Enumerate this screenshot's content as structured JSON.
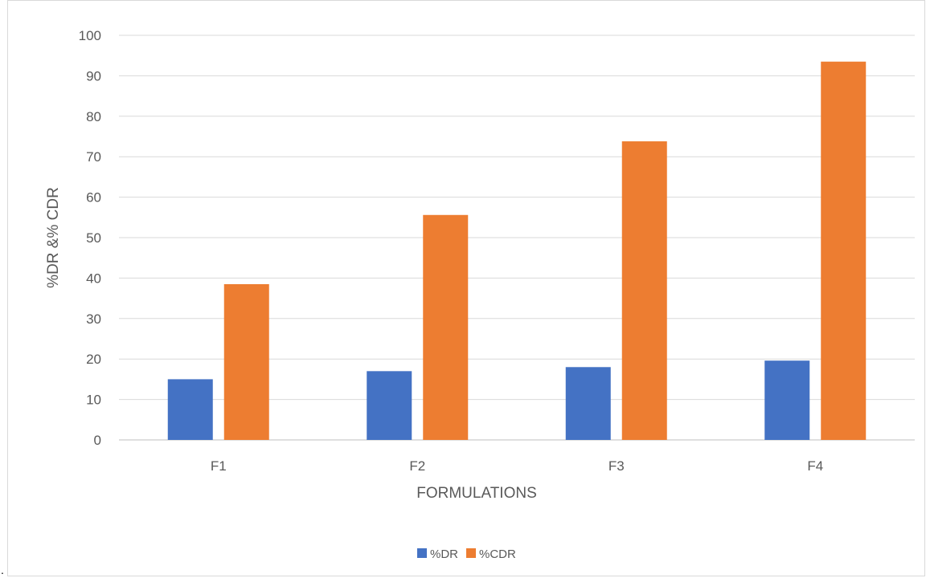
{
  "chart_data": {
    "type": "bar",
    "title": "",
    "xlabel": "FORMULATIONS",
    "ylabel": "%DR &% CDR",
    "categories": [
      "F1",
      "F2",
      "F3",
      "F4"
    ],
    "series": [
      {
        "name": "%DR",
        "color": "#4472C4",
        "values": [
          15.0,
          17.0,
          18.0,
          19.6
        ]
      },
      {
        "name": "%CDR",
        "color": "#ED7D31",
        "values": [
          38.5,
          55.6,
          73.8,
          93.5
        ]
      }
    ],
    "ylim": [
      0,
      100
    ],
    "yticks": [
      0,
      10,
      20,
      30,
      40,
      50,
      60,
      70,
      80,
      90,
      100
    ],
    "grid": true,
    "legend_position": "bottom"
  },
  "stray_mark": "."
}
